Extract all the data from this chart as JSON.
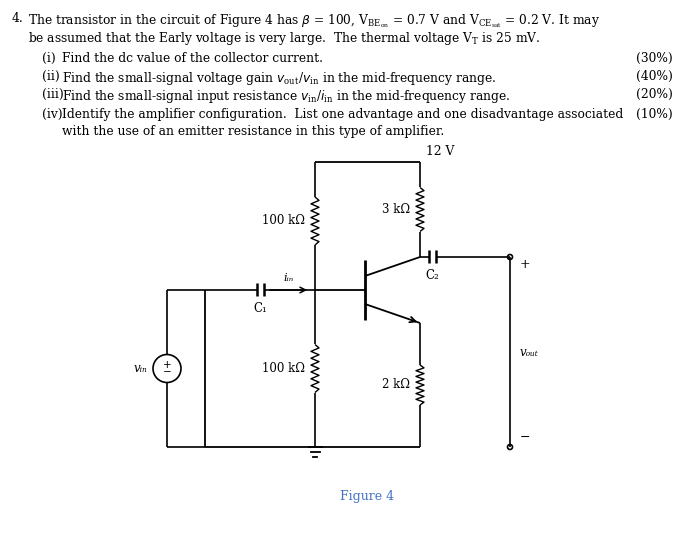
{
  "bg_color": "#ffffff",
  "text_color": "#000000",
  "line_color": "#000000",
  "figure_label": "Figure 4",
  "fig_label_color": "#4472c4",
  "vcc_label": "12 V",
  "r1_label": "100 kΩ",
  "r2_label": "100 kΩ",
  "rc_label": "3 kΩ",
  "re_label": "2 kΩ",
  "c1_label": "C₁",
  "c2_label": "C₂",
  "vin_label": "vᵢₙ",
  "vout_label": "vₒᵤₜ",
  "iin_label": "iᵢₙ",
  "plus_label": "+",
  "minus_label": "−"
}
